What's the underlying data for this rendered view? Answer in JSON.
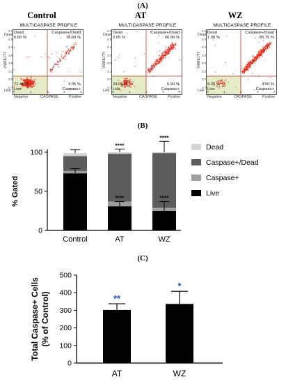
{
  "panel_labels": {
    "a": "(A)",
    "b": "(B)",
    "c": "(C)"
  },
  "flow_panels": [
    {
      "condition": "Control",
      "plot_title": "MULTICASPASE PROFILE",
      "y_axis": "VIABILITY",
      "y_top": "Dead",
      "y_bottom": "Live",
      "x_axis": "CASPASE",
      "x_left": "Negative",
      "x_right": "Positive",
      "q_dead_label": "Dead",
      "q_dead_value": "6.60 %",
      "q_cd_label": "Caspase+/Dead",
      "q_cd_value": "18.90 %",
      "q_live_label": "Live",
      "q_live_value": "71.45 %",
      "q_cp_label": "Caspase+",
      "q_cp_value": "3.05 %",
      "yticks": [
        "4.9",
        "4.6",
        "4.3",
        "3.9",
        "3.6",
        "3.3",
        "3.0",
        "2.7"
      ],
      "xticks": [
        "0",
        "1",
        "2",
        "3",
        "4"
      ]
    },
    {
      "condition": "AT",
      "plot_title": "MULTICASPASE PROFILE",
      "y_axis": "VIABILITY",
      "y_top": "Dead",
      "y_bottom": "Live",
      "x_axis": "CASPASE",
      "x_left": "Negative",
      "x_right": "Positive",
      "q_dead_label": "Dead",
      "q_dead_value": "3.05 %",
      "q_cd_label": "Caspase+/Dead",
      "q_cd_value": "66.90 %",
      "q_live_label": "Live",
      "q_live_value": "24.05 %",
      "q_cp_label": "Caspase+",
      "q_cp_value": "6.00 %",
      "yticks": [
        "4.9",
        "4.6",
        "4.3",
        "3.9",
        "3.6",
        "3.3",
        "3.0",
        "2.7"
      ],
      "xticks": [
        "0",
        "1",
        "2",
        "3",
        "4"
      ]
    },
    {
      "condition": "WZ",
      "plot_title": "MULTICASPASE PROFILE",
      "y_axis": "VIABILITY",
      "y_top": "Dead",
      "y_bottom": "Live",
      "x_axis": "CASPASE",
      "x_left": "Negative",
      "x_right": "Positive",
      "q_dead_label": "Dead",
      "q_dead_value": "1.00 %",
      "q_cd_label": "Caspase+/Dead",
      "q_cd_value": "85.75 %",
      "q_live_label": "Live",
      "q_live_value": "9.25 %",
      "q_cp_label": "Caspase+",
      "q_cp_value": "4.00 %",
      "yticks": [
        "4.9",
        "4.6",
        "4.3",
        "3.9",
        "3.6",
        "3.3",
        "3.0",
        "2.7"
      ],
      "xticks": [
        "0",
        "1",
        "2",
        "3",
        "4"
      ]
    }
  ],
  "colors": {
    "dot": "#e03020",
    "gate_line": "#c0392b",
    "live_gate": "#e4edc8",
    "live_bar": "#000000",
    "caspase_bar": "#9e9e9e",
    "caspase_dead_bar": "#5c5c5c",
    "dead_bar": "#d4d4d4",
    "star_c": "#1f4fbf"
  },
  "chart_data": [
    {
      "type": "bar",
      "stacked": true,
      "categories": [
        "Control",
        "AT",
        "WZ"
      ],
      "ylabel": "% Gated",
      "ylim": [
        0,
        100
      ],
      "yticks": [
        0,
        50,
        100
      ],
      "legend_position": "right",
      "series": [
        {
          "name": "Live",
          "values": [
            73,
            31,
            25
          ],
          "err": [
            6,
            6,
            12
          ]
        },
        {
          "name": "Caspase+",
          "values": [
            3,
            6,
            4
          ]
        },
        {
          "name": "Caspase+/Dead",
          "values": [
            19,
            61,
            70
          ]
        },
        {
          "name": "Dead",
          "values": [
            4,
            2,
            1
          ],
          "err": [
            4,
            4,
            14
          ]
        }
      ],
      "annotations": [
        {
          "category": "AT",
          "text": "****",
          "position": "top"
        },
        {
          "category": "WZ",
          "text": "****",
          "position": "top"
        },
        {
          "category": "AT",
          "text": "****",
          "position": "live"
        },
        {
          "category": "WZ",
          "text": "****",
          "position": "live"
        }
      ]
    },
    {
      "type": "bar",
      "categories": [
        "AT",
        "WZ"
      ],
      "values": [
        302,
        336
      ],
      "err": [
        35,
        72
      ],
      "ylabel": "Total  Caspase+ Cells\n(% of Control)",
      "ylim": [
        0,
        500
      ],
      "yticks": [
        0,
        100,
        200,
        300,
        400,
        500
      ],
      "annotations": [
        {
          "category": "AT",
          "text": "**"
        },
        {
          "category": "WZ",
          "text": "*"
        }
      ]
    }
  ]
}
